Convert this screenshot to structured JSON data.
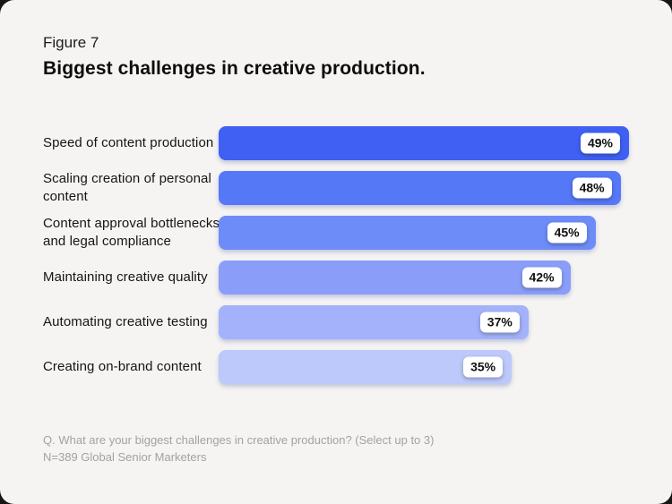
{
  "window": {
    "outer_background": "#161616",
    "card_background": "#f5f4f2"
  },
  "header": {
    "figure_label": "Figure 7",
    "title": "Biggest challenges in creative production."
  },
  "chart_data": {
    "type": "bar",
    "orientation": "horizontal",
    "title": "Biggest challenges in creative production.",
    "categories": [
      "Speed of content production",
      "Scaling creation of personal content",
      "Content approval bottlenecks and legal compliance",
      "Maintaining creative quality",
      "Automating creative testing",
      "Creating on-brand content"
    ],
    "display_labels": [
      "Speed of content production",
      "Scaling creation of personal\ncontent",
      "Content approval bottlenecks\nand legal compliance",
      "Maintaining creative quality",
      "Automating creative testing",
      "Creating on-brand content"
    ],
    "values": [
      49,
      48,
      45,
      42,
      37,
      35
    ],
    "value_labels": [
      "49%",
      "48%",
      "45%",
      "42%",
      "37%",
      "35%"
    ],
    "bar_colors": [
      "#3f60f3",
      "#5578f7",
      "#6e8cf8",
      "#8a9ef9",
      "#a3b2fa",
      "#bdc8fb"
    ],
    "axis_max": 49,
    "grid": false,
    "legend": false,
    "value_label_style": "white pill badge inside right end of bar"
  },
  "footnote": {
    "question": "Q. What are your biggest challenges in creative production? (Select up to 3)",
    "sample": "N=389 Global Senior Marketers"
  }
}
